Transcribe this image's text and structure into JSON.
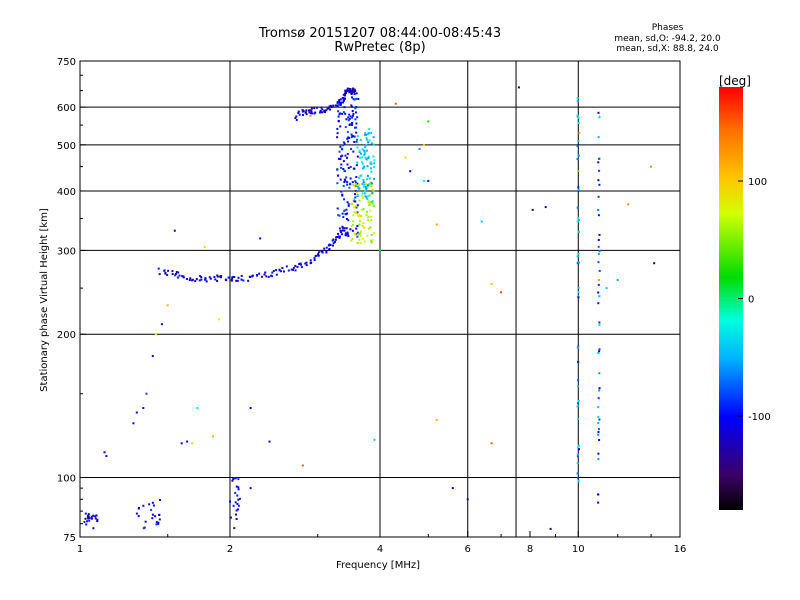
{
  "header": {
    "title": "Tromsø 20151207 08:44:00-08:45:43",
    "subtitle": "RwPretec (8p)",
    "phases_title": "Phases",
    "phases_o": "mean, sd,O: -94.2, 20.0",
    "phases_x": "mean, sd,X:  88.8, 24.0"
  },
  "colorbar": {
    "title": "[deg]",
    "min": -180,
    "max": 180,
    "ticks": [
      100,
      0,
      -100
    ],
    "tick_labels": [
      "100",
      "0",
      "-100"
    ]
  },
  "chart_data": {
    "type": "scatter",
    "title": "Tromsø 20151207 08:44:00-08:45:43",
    "subtitle": "RwPretec (8p)",
    "xlabel": "Frequency [MHz]",
    "ylabel": "Stationary phase Virtual Height [km]",
    "xscale": "log",
    "yscale": "log",
    "xlim": [
      1,
      16
    ],
    "ylim": [
      75,
      750
    ],
    "xticks": [
      1,
      2,
      4,
      6,
      8,
      10,
      16
    ],
    "xtick_labels": [
      "1",
      "2",
      "4",
      "6",
      "8",
      "10",
      "16"
    ],
    "yticks": [
      75,
      100,
      200,
      300,
      400,
      500,
      600,
      750
    ],
    "ytick_labels": [
      "75",
      "100",
      "200",
      "300",
      "400",
      "500",
      "600",
      "750"
    ],
    "grid_x": [
      2,
      4,
      6,
      7.5,
      10,
      16
    ],
    "grid_y": [
      100,
      200,
      300,
      400,
      500,
      600
    ],
    "color_encoding": "phase_deg",
    "traces": [
      {
        "f": [
          1.45,
          1.52,
          1.6,
          1.7,
          1.8,
          1.9,
          2.0,
          2.1,
          2.25,
          2.4,
          2.55,
          2.7,
          2.85,
          3.0,
          3.1,
          3.2,
          3.3,
          3.4
        ],
        "h": [
          272,
          268,
          265,
          262,
          262,
          262,
          262,
          262,
          264,
          268,
          272,
          276,
          282,
          290,
          300,
          310,
          320,
          330
        ],
        "phase": -110
      },
      {
        "f": [
          2.7,
          2.8,
          2.9,
          3.0,
          3.1,
          3.2,
          3.3,
          3.35,
          3.4
        ],
        "h": [
          572,
          585,
          590,
          590,
          592,
          598,
          610,
          625,
          640
        ],
        "phase": -115
      },
      {
        "f": [
          3.4,
          3.45,
          3.5,
          3.55,
          3.6
        ],
        "h": [
          645,
          648,
          650,
          648,
          645
        ],
        "phase": -120
      }
    ],
    "clusters": [
      {
        "f_range": [
          3.28,
          3.62
        ],
        "h_range": [
          320,
          630
        ],
        "phase": -100
      },
      {
        "f_range": [
          3.5,
          3.9
        ],
        "h_range": [
          310,
          420
        ],
        "phase": 70
      },
      {
        "f_range": [
          3.6,
          3.9
        ],
        "h_range": [
          380,
          540
        ],
        "phase": -40
      },
      {
        "f_range": [
          1.02,
          1.1
        ],
        "h_range": [
          78,
          84
        ],
        "phase": -115
      },
      {
        "f_range": [
          2.0,
          2.1
        ],
        "h_range": [
          78,
          100
        ],
        "phase": -110
      },
      {
        "f_range": [
          1.3,
          1.45
        ],
        "h_range": [
          78,
          90
        ],
        "phase": -105
      }
    ],
    "columns": [
      {
        "f": 11.0,
        "h_range": [
          85,
          610
        ],
        "phase": -80
      },
      {
        "f": 10.0,
        "h_range": [
          95,
          630
        ],
        "phase": -60
      }
    ],
    "points": [
      {
        "f": 1.12,
        "h": 113,
        "phase": -110
      },
      {
        "f": 1.13,
        "h": 111,
        "phase": -115
      },
      {
        "f": 1.28,
        "h": 130,
        "phase": -110
      },
      {
        "f": 1.3,
        "h": 137,
        "phase": -100
      },
      {
        "f": 1.34,
        "h": 140,
        "phase": -110
      },
      {
        "f": 1.36,
        "h": 150,
        "phase": -80
      },
      {
        "f": 1.4,
        "h": 180,
        "phase": -120
      },
      {
        "f": 1.42,
        "h": 200,
        "phase": 70
      },
      {
        "f": 1.46,
        "h": 210,
        "phase": -110
      },
      {
        "f": 1.5,
        "h": 230,
        "phase": 110
      },
      {
        "f": 1.55,
        "h": 330,
        "phase": -120
      },
      {
        "f": 1.6,
        "h": 118,
        "phase": -100
      },
      {
        "f": 1.64,
        "h": 119,
        "phase": -110
      },
      {
        "f": 1.68,
        "h": 118,
        "phase": 60
      },
      {
        "f": 1.72,
        "h": 140,
        "phase": -20
      },
      {
        "f": 1.78,
        "h": 305,
        "phase": 90
      },
      {
        "f": 1.85,
        "h": 122,
        "phase": 120
      },
      {
        "f": 1.9,
        "h": 215,
        "phase": 70
      },
      {
        "f": 2.2,
        "h": 95,
        "phase": -110
      },
      {
        "f": 2.3,
        "h": 318,
        "phase": -120
      },
      {
        "f": 2.2,
        "h": 140,
        "phase": -110
      },
      {
        "f": 2.4,
        "h": 119,
        "phase": -110
      },
      {
        "f": 2.8,
        "h": 106,
        "phase": 150
      },
      {
        "f": 2.9,
        "h": 575,
        "phase": 130
      },
      {
        "f": 4.3,
        "h": 610,
        "phase": 150
      },
      {
        "f": 4.5,
        "h": 470,
        "phase": 90
      },
      {
        "f": 4.6,
        "h": 440,
        "phase": -120
      },
      {
        "f": 4.8,
        "h": 490,
        "phase": -60
      },
      {
        "f": 4.9,
        "h": 500,
        "phase": 100
      },
      {
        "f": 4.9,
        "h": 420,
        "phase": -20
      },
      {
        "f": 5.0,
        "h": 560,
        "phase": 20
      },
      {
        "f": 5.0,
        "h": 420,
        "phase": -100
      },
      {
        "f": 5.2,
        "h": 340,
        "phase": 120
      },
      {
        "f": 5.2,
        "h": 132,
        "phase": 110
      },
      {
        "f": 5.6,
        "h": 95,
        "phase": -120
      },
      {
        "f": 6.0,
        "h": 90,
        "phase": -140
      },
      {
        "f": 6.7,
        "h": 255,
        "phase": 100
      },
      {
        "f": 6.7,
        "h": 118,
        "phase": 150
      },
      {
        "f": 6.4,
        "h": 345,
        "phase": -40
      },
      {
        "f": 7.0,
        "h": 245,
        "phase": 160
      },
      {
        "f": 7.6,
        "h": 660,
        "phase": -160
      },
      {
        "f": 8.1,
        "h": 365,
        "phase": -150
      },
      {
        "f": 8.6,
        "h": 370,
        "phase": -150
      },
      {
        "f": 8.8,
        "h": 78,
        "phase": -130
      },
      {
        "f": 10.0,
        "h": 440,
        "phase": 40
      },
      {
        "f": 10.05,
        "h": 530,
        "phase": 110
      },
      {
        "f": 11.0,
        "h": 260,
        "phase": 120
      },
      {
        "f": 11.4,
        "h": 250,
        "phase": -40
      },
      {
        "f": 12.0,
        "h": 260,
        "phase": -50
      },
      {
        "f": 12.6,
        "h": 375,
        "phase": 130
      },
      {
        "f": 14.0,
        "h": 450,
        "phase": 130
      },
      {
        "f": 14.2,
        "h": 282,
        "phase": -160
      },
      {
        "f": 4.0,
        "h": 300,
        "phase": 10
      },
      {
        "f": 3.9,
        "h": 120,
        "phase": -40
      }
    ]
  }
}
